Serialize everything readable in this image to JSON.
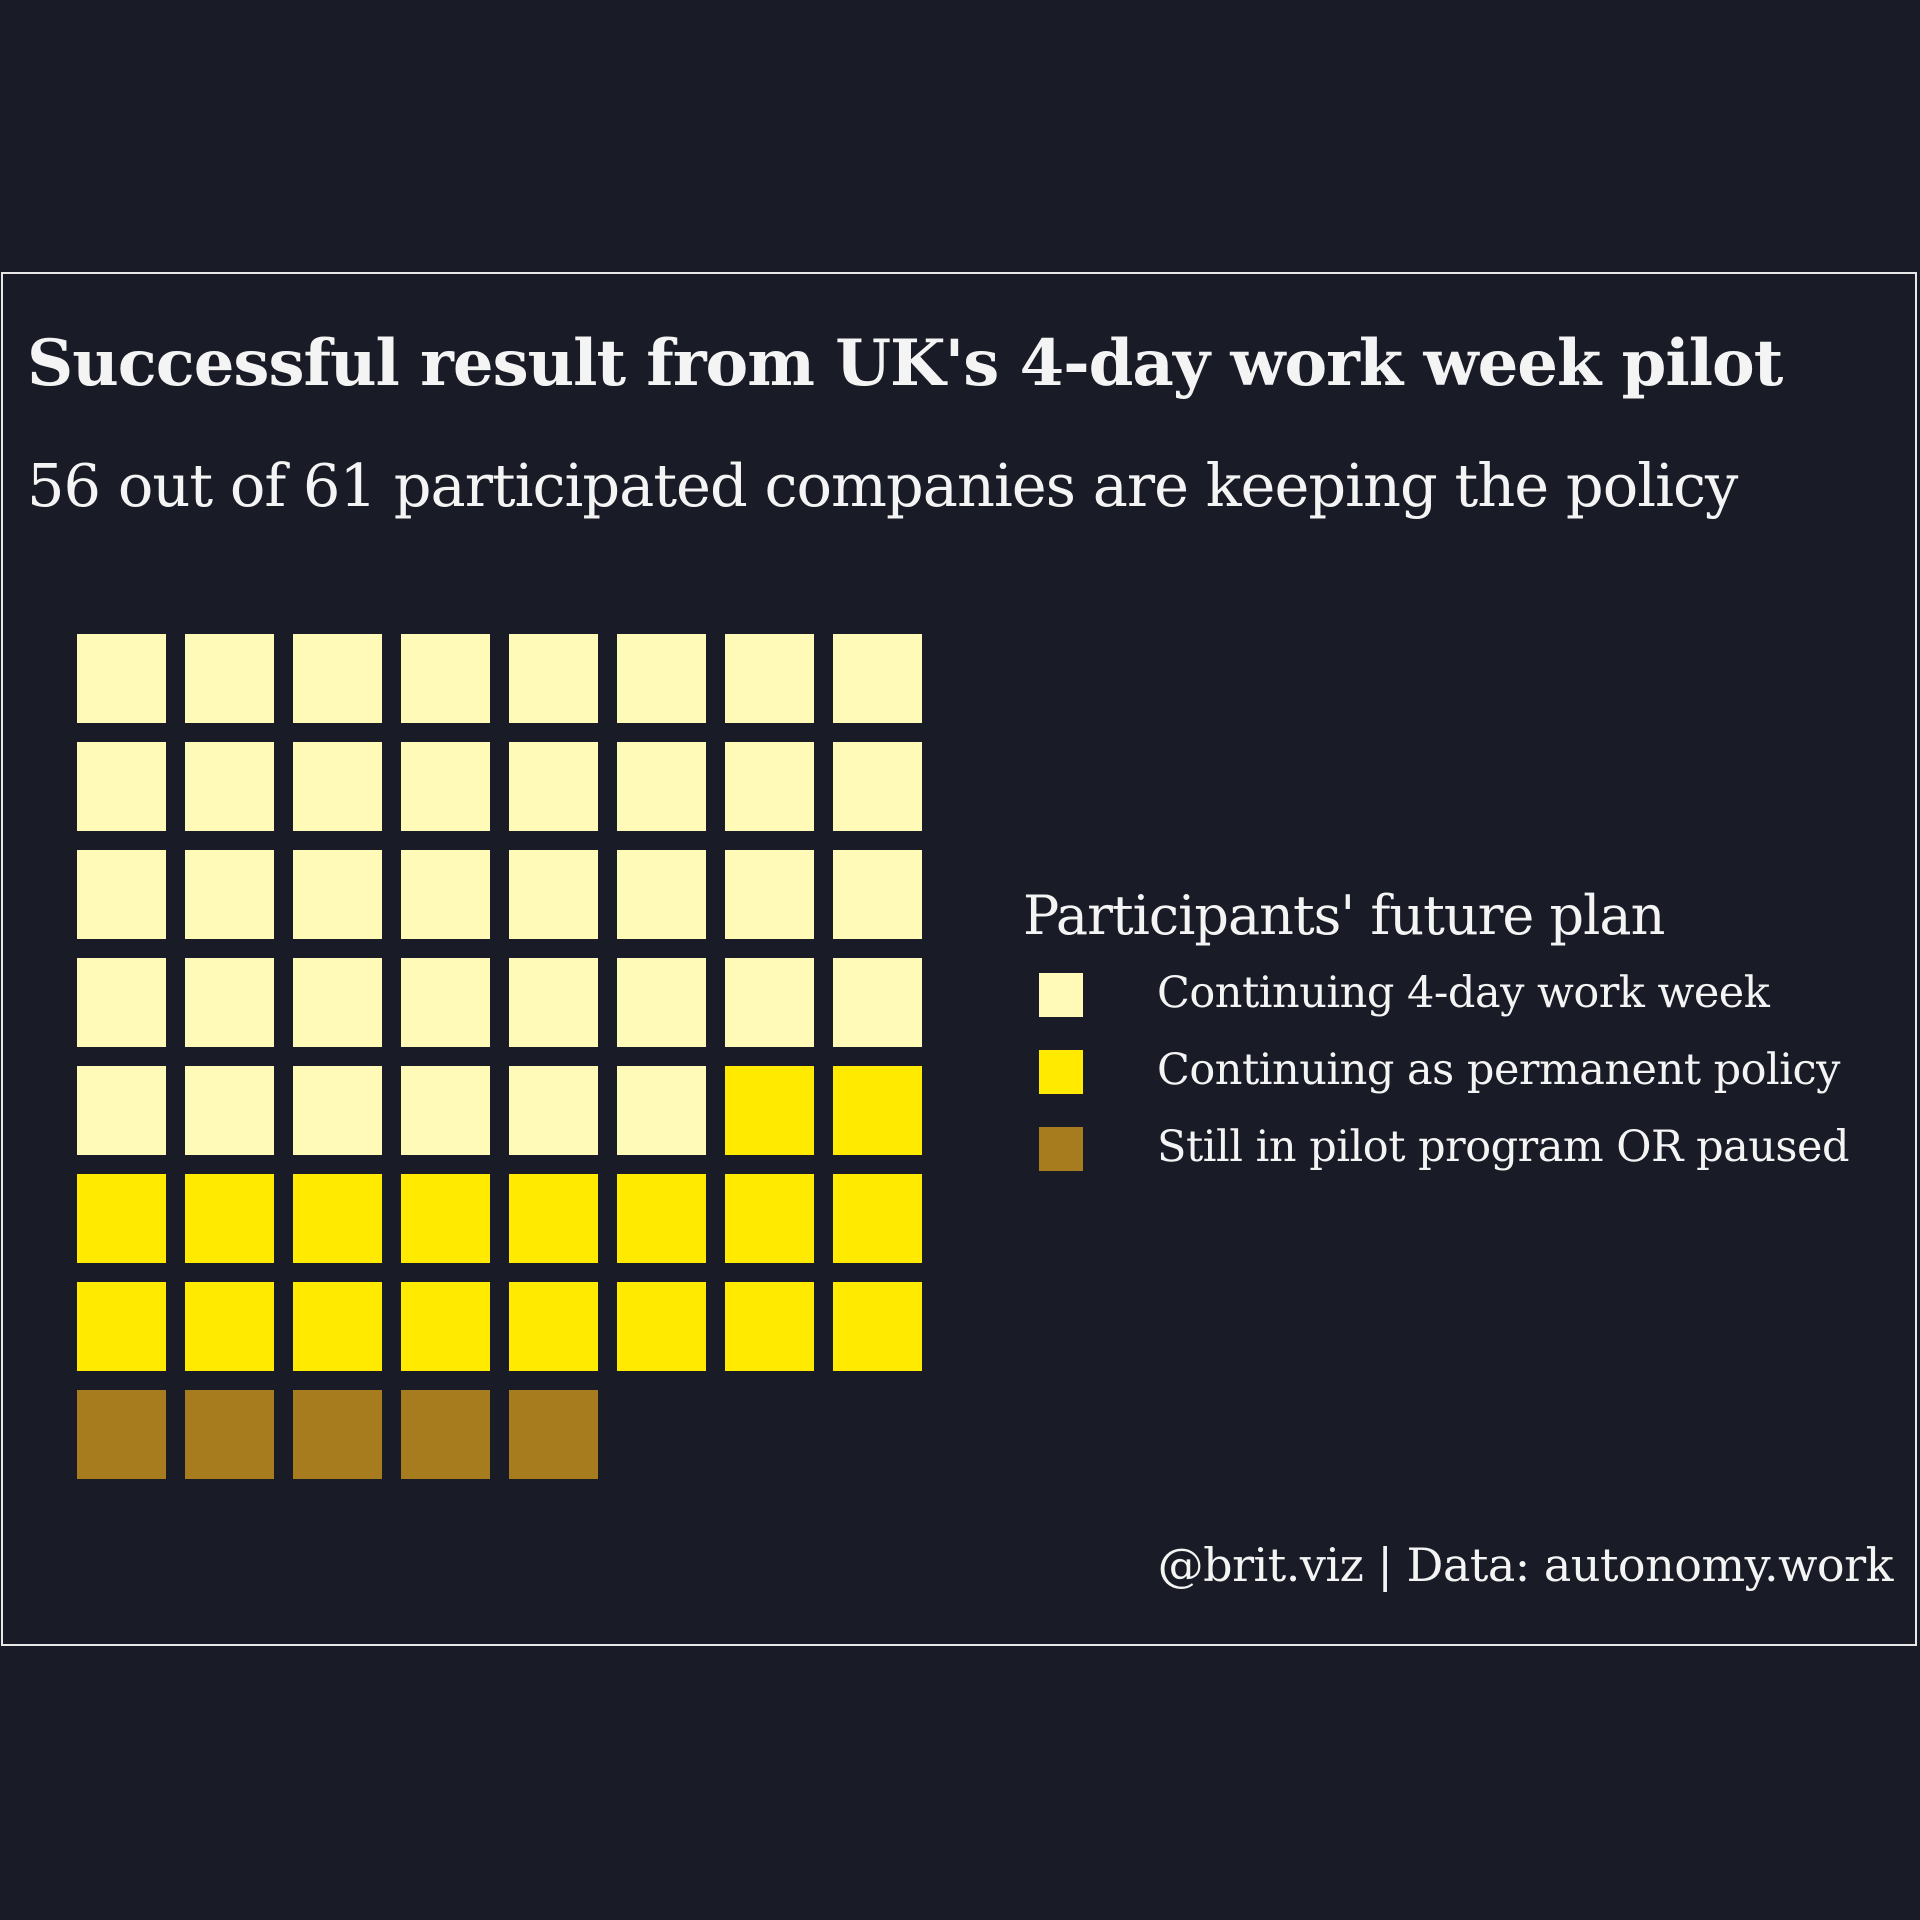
{
  "title": "Successful result from UK's 4-day work week pilot",
  "subtitle": "56 out of 61 participated companies are keeping the policy",
  "caption": "@brit.viz | Data: autonomy.work",
  "background_color": "#191c26",
  "chart_data": {
    "type": "waffle",
    "title": "Successful result from UK's 4-day work week pilot",
    "subtitle": "56 out of 61 participated companies are keeping the policy",
    "columns": 8,
    "total": 61,
    "legend_title": "Participants' future plan",
    "legend_position": "right",
    "categories": [
      {
        "name": "Continuing 4-day work week",
        "value": 38,
        "color": "#fffab8"
      },
      {
        "name": "Continuing as permanent policy",
        "value": 18,
        "color": "#ffea00"
      },
      {
        "name": "Still in pilot program OR paused",
        "value": 5,
        "color": "#a67c1f"
      }
    ]
  }
}
